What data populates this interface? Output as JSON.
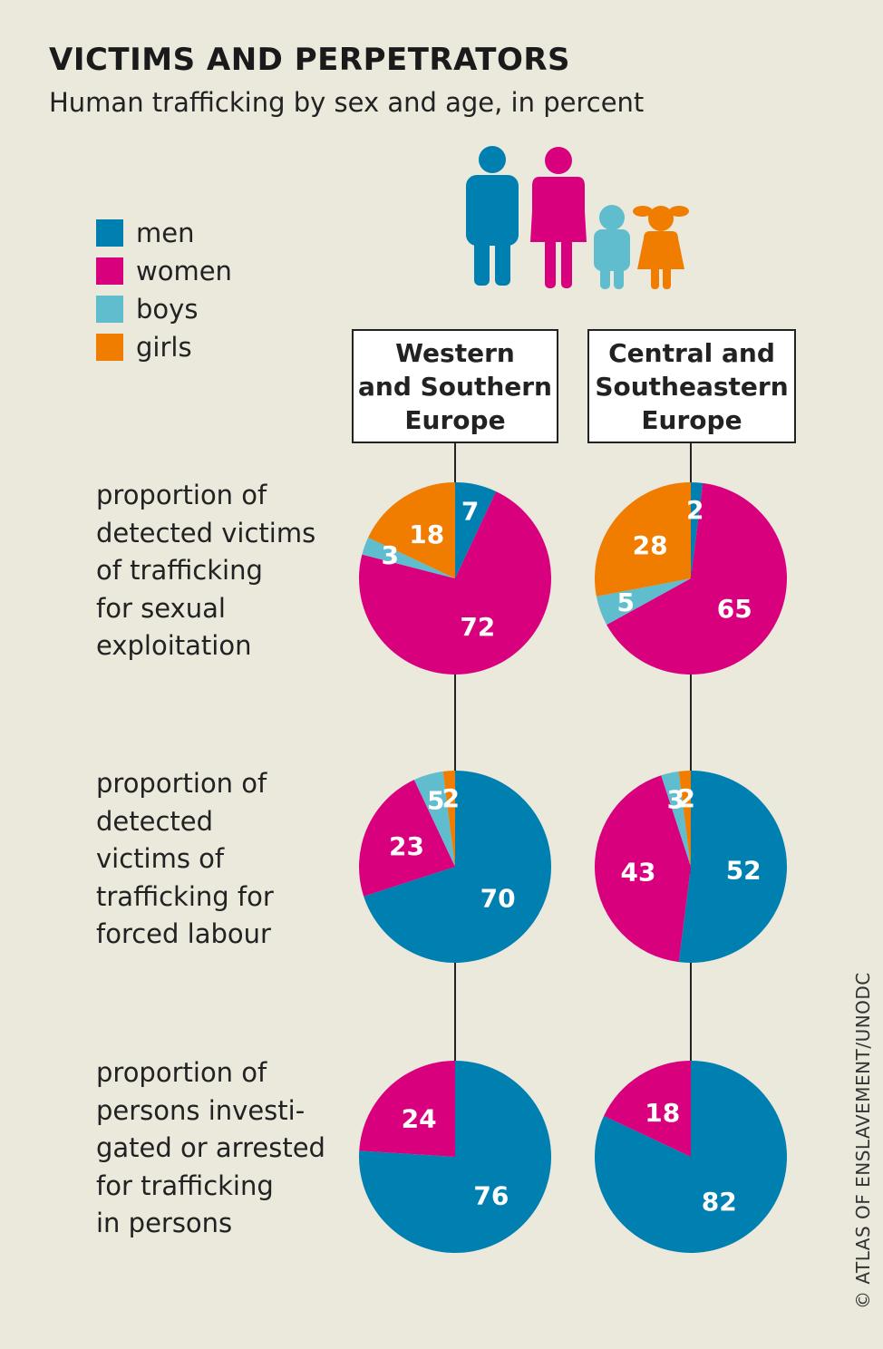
{
  "title": "VICTIMS AND PERPETRATORS",
  "subtitle": "Human trafficking by sex and age, in percent",
  "credit": "© ATLAS OF ENSLAVEMENT/UNODC",
  "legend": [
    {
      "label": "men",
      "color": "#0080b0"
    },
    {
      "label": "women",
      "color": "#d9007e"
    },
    {
      "label": "boys",
      "color": "#5fbdce"
    },
    {
      "label": "girls",
      "color": "#f07d00"
    }
  ],
  "figures_icon": "family-figures-icon",
  "rows": [
    {
      "label": "proportion of\ndetected victims\nof trafficking\nfor sexual\nexploitation"
    },
    {
      "label": "proportion of\ndetected\nvictims of\ntrafficking for\nforced labour"
    },
    {
      "label": "proportion of\npersons investi-\ngated or arrested\nfor trafficking\nin persons"
    }
  ],
  "chart_data": {
    "type": "pie",
    "categories": [
      "men",
      "women",
      "boys",
      "girls"
    ],
    "columns": [
      "Western\nand Southern\nEurope",
      "Central and\nSoutheastern\nEurope"
    ],
    "pies": [
      {
        "row": 0,
        "column": 0,
        "values": [
          7,
          72,
          3,
          18
        ]
      },
      {
        "row": 0,
        "column": 1,
        "values": [
          2,
          65,
          5,
          28
        ]
      },
      {
        "row": 1,
        "column": 0,
        "values": [
          70,
          23,
          5,
          2
        ]
      },
      {
        "row": 1,
        "column": 1,
        "values": [
          52,
          43,
          3,
          2
        ]
      },
      {
        "row": 2,
        "column": 0,
        "values": [
          76,
          24,
          0,
          0
        ]
      },
      {
        "row": 2,
        "column": 1,
        "values": [
          82,
          18,
          0,
          0
        ]
      }
    ]
  }
}
